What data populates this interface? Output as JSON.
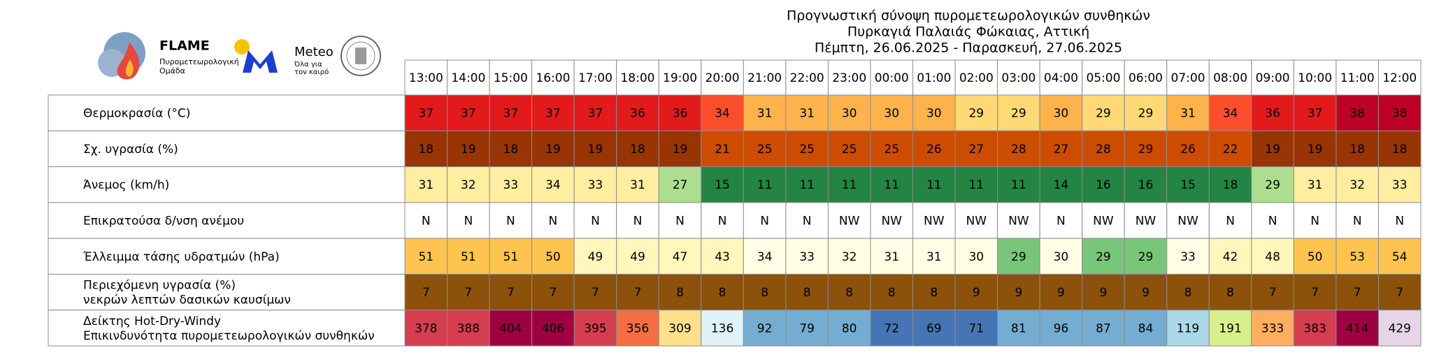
{
  "header": {
    "title_lines": [
      "Προγνωστική σύνοψη πυρομετεωρολογικών συνθηκών",
      "Πυρκαγιά Παλαιάς Φώκαιας, Αττική",
      "Πέμπτη, 26.06.2025 - Παρασκευή, 27.06.2025"
    ]
  },
  "logos": {
    "flame": {
      "name": "FLAME",
      "subtitle_lines": [
        "Πυρομετεωρολογική",
        "Ομάδα"
      ]
    },
    "meteo": {
      "name": "Meteo",
      "subtitle_lines": [
        "Όλα για",
        "τον καιρό"
      ]
    }
  },
  "table": {
    "hours": [
      "13:00",
      "14:00",
      "15:00",
      "16:00",
      "17:00",
      "18:00",
      "19:00",
      "20:00",
      "21:00",
      "22:00",
      "23:00",
      "00:00",
      "01:00",
      "02:00",
      "03:00",
      "04:00",
      "05:00",
      "06:00",
      "07:00",
      "08:00",
      "09:00",
      "10:00",
      "11:00",
      "12:00"
    ],
    "rows": [
      {
        "label": [
          "Θερμοκρασία (°C)"
        ],
        "values": [
          37,
          37,
          37,
          37,
          37,
          36,
          36,
          34,
          31,
          31,
          30,
          30,
          30,
          29,
          29,
          30,
          29,
          29,
          31,
          34,
          36,
          37,
          38,
          38
        ],
        "colors": [
          "#e31a1c",
          "#e31a1c",
          "#e31a1c",
          "#e31a1c",
          "#e31a1c",
          "#e31a1c",
          "#e31a1c",
          "#fc4e2a",
          "#feb24c",
          "#feb24c",
          "#feb24c",
          "#feb24c",
          "#feb24c",
          "#fed976",
          "#fed976",
          "#feb24c",
          "#fed976",
          "#fed976",
          "#feb24c",
          "#fc4e2a",
          "#e31a1c",
          "#e31a1c",
          "#bd0026",
          "#bd0026"
        ]
      },
      {
        "label": [
          "Σχ. υγρασία (%)"
        ],
        "values": [
          18,
          19,
          18,
          19,
          19,
          18,
          19,
          21,
          25,
          25,
          25,
          25,
          26,
          27,
          28,
          27,
          28,
          29,
          26,
          22,
          19,
          19,
          18,
          18
        ],
        "colors": [
          "#993404",
          "#993404",
          "#993404",
          "#993404",
          "#993404",
          "#993404",
          "#993404",
          "#cc4c02",
          "#cc4c02",
          "#cc4c02",
          "#cc4c02",
          "#cc4c02",
          "#cc4c02",
          "#cc4c02",
          "#cc4c02",
          "#cc4c02",
          "#cc4c02",
          "#cc4c02",
          "#cc4c02",
          "#cc4c02",
          "#993404",
          "#993404",
          "#993404",
          "#993404"
        ]
      },
      {
        "label": [
          "Άνεμος (km/h)"
        ],
        "values": [
          31,
          32,
          33,
          34,
          33,
          31,
          27,
          15,
          11,
          11,
          11,
          11,
          11,
          11,
          11,
          14,
          16,
          16,
          15,
          18,
          29,
          31,
          32,
          33
        ],
        "colors": [
          "#ffeda0",
          "#ffeda0",
          "#ffeda0",
          "#ffeda0",
          "#ffeda0",
          "#ffeda0",
          "#addd8e",
          "#238443",
          "#238443",
          "#238443",
          "#238443",
          "#238443",
          "#238443",
          "#238443",
          "#238443",
          "#238443",
          "#238443",
          "#238443",
          "#238443",
          "#238443",
          "#addd8e",
          "#ffeda0",
          "#ffeda0",
          "#ffeda0"
        ]
      },
      {
        "label": [
          "Επικρατούσα δ/νση ανέμου"
        ],
        "values": [
          "N",
          "N",
          "N",
          "N",
          "N",
          "N",
          "N",
          "N",
          "N",
          "N",
          "NW",
          "NW",
          "NW",
          "NW",
          "NW",
          "N",
          "NW",
          "NW",
          "NW",
          "N",
          "N",
          "N",
          "N",
          "N"
        ],
        "colors": [
          "#ffffff",
          "#ffffff",
          "#ffffff",
          "#ffffff",
          "#ffffff",
          "#ffffff",
          "#ffffff",
          "#ffffff",
          "#ffffff",
          "#ffffff",
          "#ffffff",
          "#ffffff",
          "#ffffff",
          "#ffffff",
          "#ffffff",
          "#ffffff",
          "#ffffff",
          "#ffffff",
          "#ffffff",
          "#ffffff",
          "#ffffff",
          "#ffffff",
          "#ffffff",
          "#ffffff"
        ]
      },
      {
        "label": [
          "Έλλειμμα τάσης υδρατμών (hPa)"
        ],
        "values": [
          51,
          51,
          51,
          50,
          49,
          49,
          47,
          43,
          34,
          33,
          32,
          31,
          31,
          30,
          29,
          30,
          29,
          29,
          33,
          42,
          48,
          50,
          53,
          54
        ],
        "colors": [
          "#fec44f",
          "#fec44f",
          "#fec44f",
          "#fec44f",
          "#fff7bc",
          "#fff7bc",
          "#fff7bc",
          "#fff7bc",
          "#ffffe5",
          "#ffffe5",
          "#ffffe5",
          "#ffffe5",
          "#ffffe5",
          "#ffffe5",
          "#78c679",
          "#ffffe5",
          "#78c679",
          "#78c679",
          "#ffffe5",
          "#fff7bc",
          "#fff7bc",
          "#fec44f",
          "#fec44f",
          "#fec44f"
        ]
      },
      {
        "label": [
          "Περιεχόμενη υγρασία (%)",
          "νεκρών λεπτών δασικών καυσίμων"
        ],
        "values": [
          7,
          7,
          7,
          7,
          7,
          7,
          8,
          8,
          8,
          8,
          8,
          8,
          8,
          9,
          9,
          9,
          9,
          9,
          8,
          8,
          7,
          7,
          7,
          7
        ],
        "colors": [
          "#8c510a",
          "#8c510a",
          "#8c510a",
          "#8c510a",
          "#8c510a",
          "#8c510a",
          "#8c510a",
          "#8c510a",
          "#8c510a",
          "#8c510a",
          "#8c510a",
          "#8c510a",
          "#8c510a",
          "#8c510a",
          "#8c510a",
          "#8c510a",
          "#8c510a",
          "#8c510a",
          "#8c510a",
          "#8c510a",
          "#8c510a",
          "#8c510a",
          "#8c510a",
          "#8c510a"
        ]
      },
      {
        "label": [
          "Δείκτης Hot-Dry-Windy",
          "Επικινδυνότητα πυρομετεωρολογικών συνθηκών"
        ],
        "values": [
          378,
          388,
          404,
          406,
          395,
          356,
          309,
          136,
          92,
          79,
          80,
          72,
          69,
          71,
          81,
          96,
          87,
          84,
          119,
          191,
          333,
          383,
          414,
          429
        ],
        "colors": [
          "#d53e4f",
          "#d53e4f",
          "#9e0142",
          "#9e0142",
          "#d53e4f",
          "#f46d43",
          "#fee08b",
          "#e0f3f8",
          "#74add1",
          "#74add1",
          "#74add1",
          "#4575b4",
          "#4575b4",
          "#4575b4",
          "#74add1",
          "#74add1",
          "#74add1",
          "#74add1",
          "#abd9e9",
          "#d9ef8b",
          "#fdae61",
          "#d53e4f",
          "#9e0142",
          "#e7d4e8"
        ]
      }
    ]
  }
}
